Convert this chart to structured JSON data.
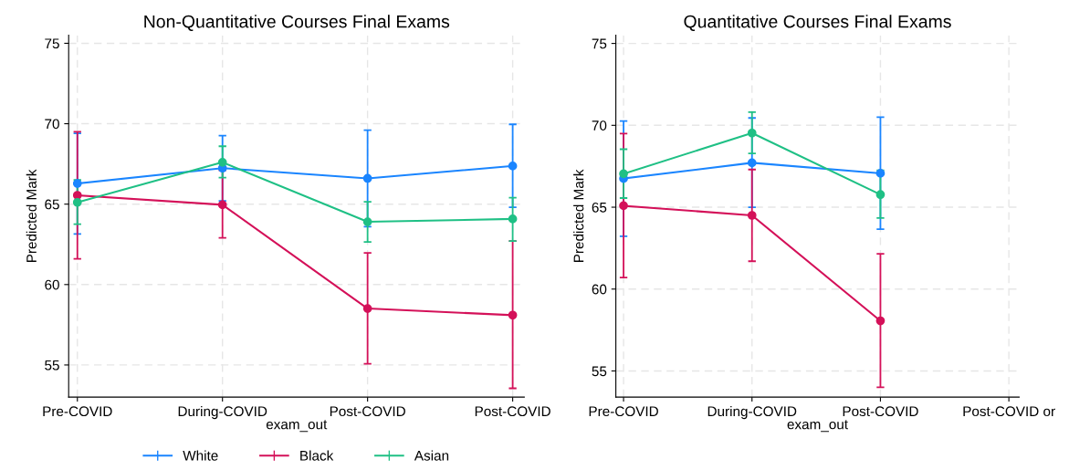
{
  "chart_data": [
    {
      "type": "line",
      "title": "Non-Quantitative Courses Final Exams",
      "xlabel": "exam_out",
      "ylabel": "Predicted Mark",
      "categories": [
        "Pre-COVID",
        "During-COVID",
        "Post-COVID",
        "Post-COVID"
      ],
      "ylim": [
        53.0,
        75.5
      ],
      "yticks": [
        55,
        60,
        65,
        70,
        75
      ],
      "grid": true,
      "legend": "bottom",
      "marker": "circle",
      "line_style": "solid",
      "series": [
        {
          "name": "White",
          "color": "#1a85ff",
          "values": [
            66.28,
            67.24,
            66.6,
            67.37
          ],
          "errors": [
            [
              63.15,
              69.4
            ],
            [
              65.2,
              69.26
            ],
            [
              63.6,
              69.6
            ],
            [
              64.8,
              69.96
            ]
          ]
        },
        {
          "name": "Black",
          "color": "#d41159",
          "values": [
            65.55,
            64.96,
            58.51,
            58.1
          ],
          "errors": [
            [
              61.6,
              69.5
            ],
            [
              62.9,
              67.1
            ],
            [
              55.07,
              61.97
            ],
            [
              53.55,
              62.7
            ]
          ]
        },
        {
          "name": "Asian",
          "color": "#1fc085",
          "values": [
            65.11,
            67.6,
            63.9,
            64.08
          ],
          "errors": [
            [
              63.75,
              66.5
            ],
            [
              66.65,
              68.6
            ],
            [
              62.65,
              65.15
            ],
            [
              62.7,
              65.4
            ]
          ]
        }
      ]
    },
    {
      "type": "line",
      "title": "Quantitative Courses Final Exams",
      "xlabel": "exam_out",
      "ylabel": "Predicted Mark",
      "categories": [
        "Pre-COVID",
        "During-COVID",
        "Post-COVID",
        "Post-COVID or"
      ],
      "ylim": [
        53.4,
        75.5
      ],
      "yticks": [
        55,
        60,
        65,
        70,
        75
      ],
      "grid": true,
      "marker": "circle",
      "line_style": "solid",
      "series": [
        {
          "color": "#1a85ff",
          "values": [
            66.75,
            67.71,
            67.07,
            null
          ],
          "errors": [
            [
              63.23,
              70.26
            ],
            [
              65.0,
              70.45
            ],
            [
              63.66,
              70.5
            ],
            null
          ]
        },
        {
          "color": "#d41159",
          "values": [
            65.09,
            64.5,
            58.06,
            null
          ],
          "errors": [
            [
              60.7,
              69.5
            ],
            [
              61.7,
              67.3
            ],
            [
              54.0,
              62.15
            ],
            null
          ]
        },
        {
          "color": "#1fc085",
          "values": [
            67.04,
            69.53,
            65.77,
            null
          ],
          "errors": [
            [
              65.56,
              68.54
            ],
            [
              68.28,
              70.8
            ],
            [
              64.34,
              67.25
            ],
            null
          ]
        }
      ]
    }
  ]
}
